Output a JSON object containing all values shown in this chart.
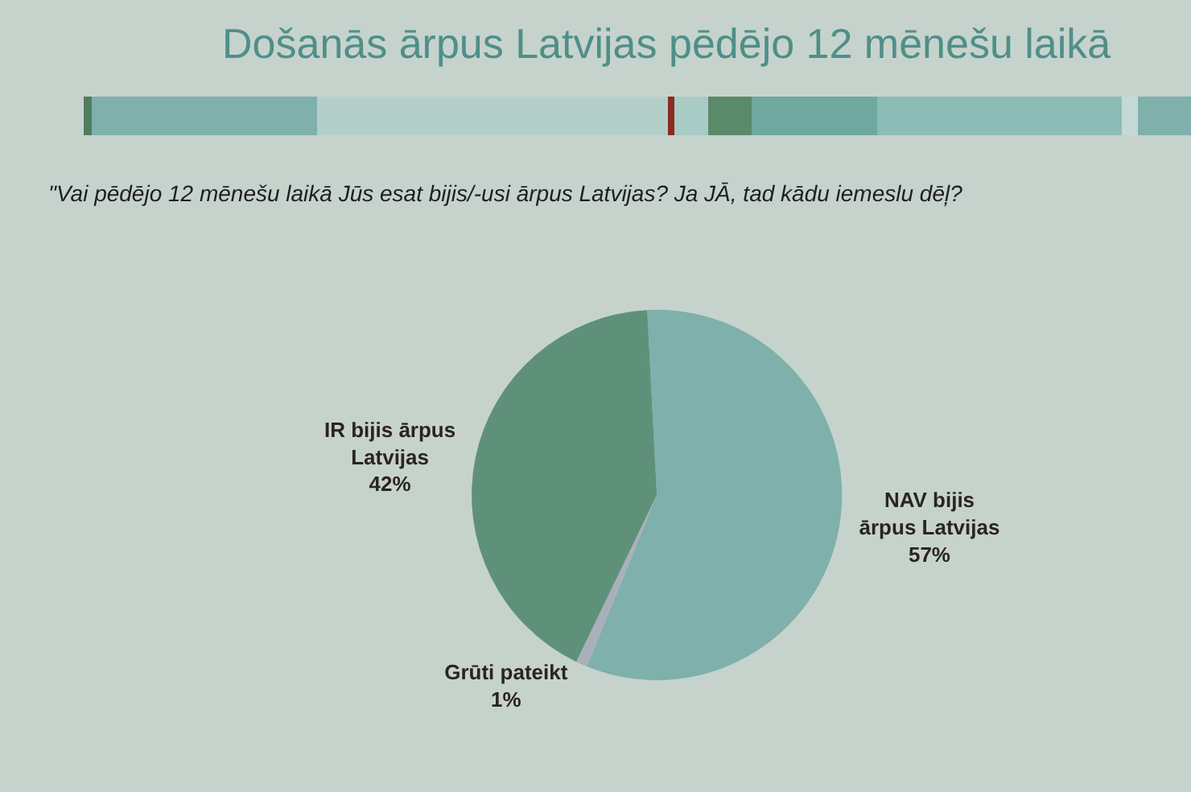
{
  "chart_data": {
    "type": "pie",
    "title": "Došanās ārpus Latvijas pēdējo 12 mēnešu laikā",
    "subtitle": "\"Vai pēdējo 12 mēnešu laikā Jūs esat bijis/-usi ārpus Latvijas? Ja JĀ, tad kādu iemeslu dēļ?",
    "categories": [
      "NAV bijis ārpus Latvijas",
      "Grūti pateikt",
      "IR bijis ārpus Latvijas"
    ],
    "values": [
      57,
      1,
      42
    ],
    "colors": [
      "#7fb0ab",
      "#aab0bb",
      "#5f917a"
    ],
    "value_labels": [
      "57%",
      "1%",
      "42%"
    ]
  }
}
